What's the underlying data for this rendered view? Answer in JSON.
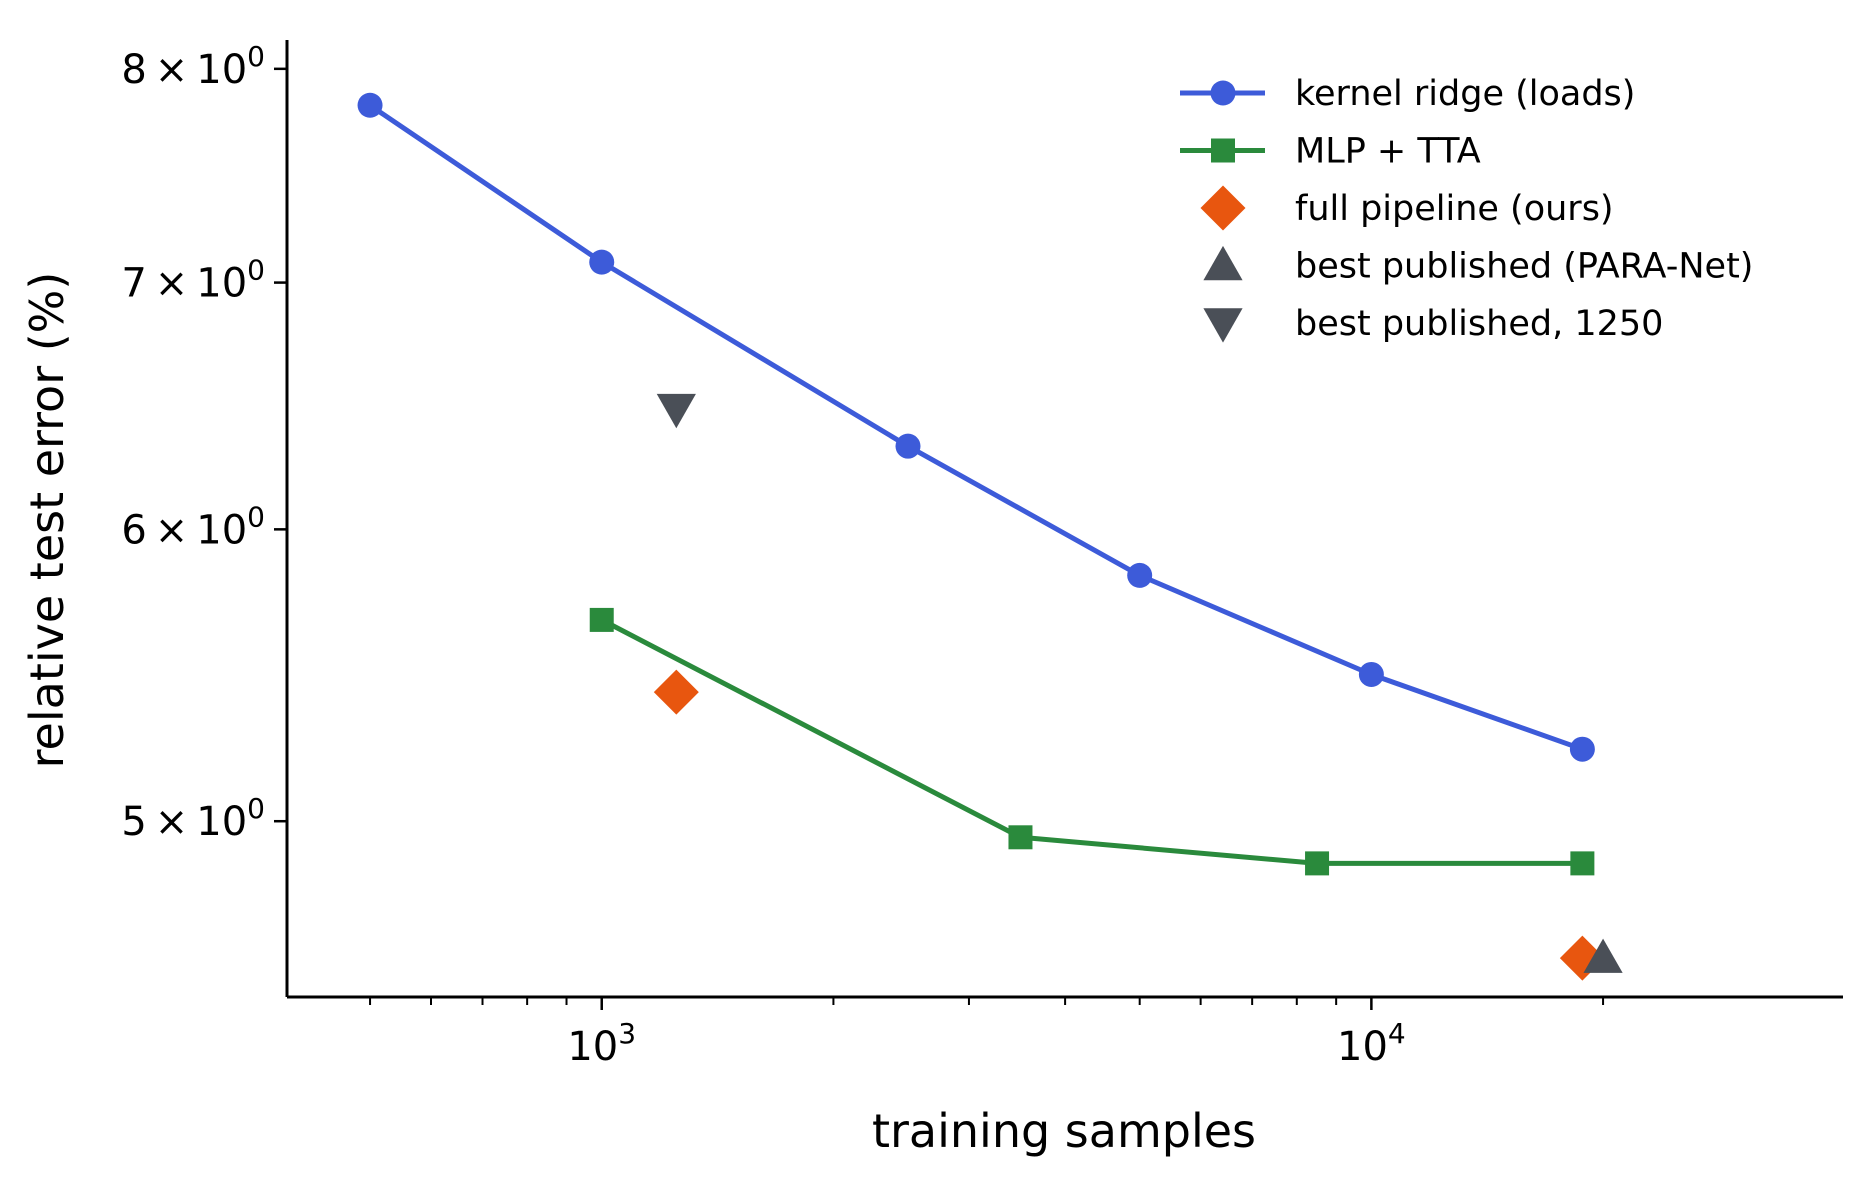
{
  "chart_data": {
    "type": "line",
    "title": "",
    "xlabel": "training samples",
    "ylabel": "relative test error (%)",
    "xscale": "log",
    "yscale": "log",
    "xlim": [
      390,
      41000
    ],
    "ylim": [
      4.48,
      8.12
    ],
    "x_major_ticks": [
      {
        "value": 1000,
        "base": "10",
        "exp": "3"
      },
      {
        "value": 10000,
        "base": "10",
        "exp": "4"
      }
    ],
    "x_minor_ticks": [
      500,
      600,
      700,
      800,
      900,
      2000,
      3000,
      4000,
      5000,
      6000,
      7000,
      8000,
      9000,
      20000
    ],
    "y_ticks": [
      {
        "value": 5,
        "mantissa": "5",
        "base": "10",
        "exp": "0"
      },
      {
        "value": 6,
        "mantissa": "6",
        "base": "10",
        "exp": "0"
      },
      {
        "value": 7,
        "mantissa": "7",
        "base": "10",
        "exp": "0"
      },
      {
        "value": 8,
        "mantissa": "8",
        "base": "10",
        "exp": "0"
      }
    ],
    "grid": false,
    "legend_position": "top-right",
    "series": [
      {
        "name": "kernel ridge (loads)",
        "kind": "line",
        "marker": "circle",
        "color": "#3d5bd9",
        "points": [
          [
            500,
            7.82
          ],
          [
            1000,
            7.09
          ],
          [
            2500,
            6.32
          ],
          [
            5000,
            5.83
          ],
          [
            10000,
            5.48
          ],
          [
            18800,
            5.23
          ]
        ]
      },
      {
        "name": "MLP + TTA",
        "kind": "line",
        "marker": "square",
        "color": "#2a8a3c",
        "points": [
          [
            1000,
            5.67
          ],
          [
            3500,
            4.95
          ],
          [
            8500,
            4.87
          ],
          [
            18800,
            4.87
          ]
        ]
      },
      {
        "name": "full pipeline (ours)",
        "kind": "scatter",
        "marker": "diamond",
        "color": "#e8560f",
        "points": [
          [
            1250,
            5.42
          ],
          [
            18800,
            4.59
          ]
        ]
      },
      {
        "name": "best published (PARA-Net)",
        "kind": "scatter",
        "marker": "triangle-up",
        "color": "#4a4f57",
        "points": [
          [
            20000,
            4.59
          ]
        ]
      },
      {
        "name": "best published, 1250",
        "kind": "scatter",
        "marker": "triangle-down",
        "color": "#4a4f57",
        "points": [
          [
            1250,
            6.47
          ]
        ]
      }
    ]
  }
}
